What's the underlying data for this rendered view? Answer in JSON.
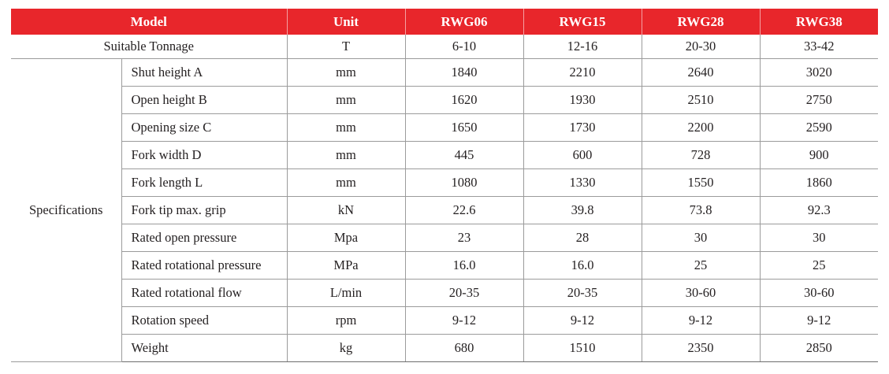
{
  "table": {
    "header": {
      "model": "Model",
      "unit": "Unit",
      "models": [
        "RWG06",
        "RWG15",
        "RWG28",
        "RWG38"
      ]
    },
    "tonnage": {
      "label": "Suitable Tonnage",
      "unit": "T",
      "values": [
        "6-10",
        "12-16",
        "20-30",
        "33-42"
      ]
    },
    "specifications": {
      "group_label": "Specifications",
      "rows": [
        {
          "name": "Shut height A",
          "unit": "mm",
          "values": [
            "1840",
            "2210",
            "2640",
            "3020"
          ]
        },
        {
          "name": "Open height B",
          "unit": "mm",
          "values": [
            "1620",
            "1930",
            "2510",
            "2750"
          ]
        },
        {
          "name": "Opening size C",
          "unit": "mm",
          "values": [
            "1650",
            "1730",
            "2200",
            "2590"
          ]
        },
        {
          "name": "Fork width D",
          "unit": "mm",
          "values": [
            "445",
            "600",
            "728",
            "900"
          ]
        },
        {
          "name": "Fork length L",
          "unit": "mm",
          "values": [
            "1080",
            "1330",
            "1550",
            "1860"
          ]
        },
        {
          "name": "Fork tip max. grip",
          "unit": "kN",
          "values": [
            "22.6",
            "39.8",
            "73.8",
            "92.3"
          ]
        },
        {
          "name": "Rated open pressure",
          "unit": "Mpa",
          "values": [
            "23",
            "28",
            "30",
            "30"
          ]
        },
        {
          "name": "Rated rotational pressure",
          "unit": "MPa",
          "values": [
            "16.0",
            "16.0",
            "25",
            "25"
          ]
        },
        {
          "name": "Rated rotational flow",
          "unit": "L/min",
          "values": [
            "20-35",
            "20-35",
            "30-60",
            "30-60"
          ]
        },
        {
          "name": "Rotation speed",
          "unit": "rpm",
          "values": [
            "9-12",
            "9-12",
            "9-12",
            "9-12"
          ]
        },
        {
          "name": "Weight",
          "unit": "kg",
          "values": [
            "680",
            "1510",
            "2350",
            "2850"
          ]
        }
      ]
    },
    "colors": {
      "header_bg": "#e8262b",
      "header_text": "#ffffff",
      "body_text": "#231f20",
      "rule": "#9b9b9b"
    }
  }
}
